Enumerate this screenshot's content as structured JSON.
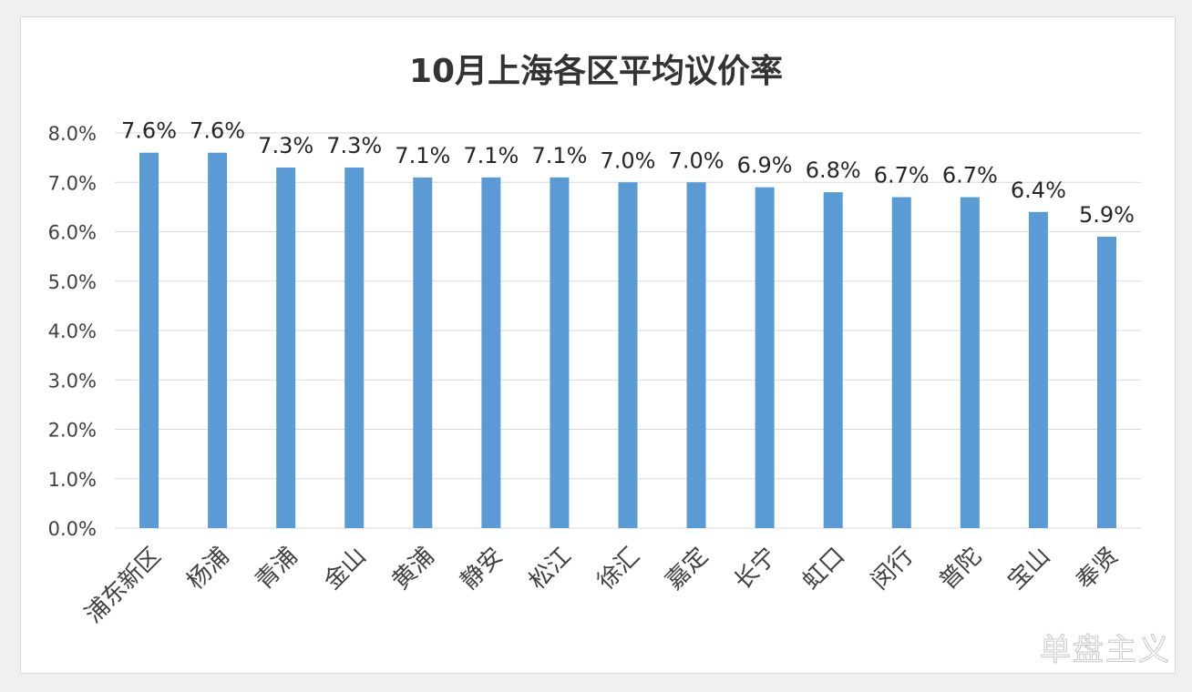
{
  "chart_data": {
    "type": "bar",
    "title": "10月上海各区平均议价率",
    "categories": [
      "浦东新区",
      "杨浦",
      "青浦",
      "金山",
      "黄浦",
      "静安",
      "松江",
      "徐汇",
      "嘉定",
      "长宁",
      "虹口",
      "闵行",
      "普陀",
      "宝山",
      "奉贤"
    ],
    "values": [
      7.6,
      7.6,
      7.3,
      7.3,
      7.1,
      7.1,
      7.1,
      7.0,
      7.0,
      6.9,
      6.8,
      6.7,
      6.7,
      6.4,
      5.9
    ],
    "value_labels": [
      "7.6%",
      "7.6%",
      "7.3%",
      "7.3%",
      "7.1%",
      "7.1%",
      "7.1%",
      "7.0%",
      "7.0%",
      "6.9%",
      "6.8%",
      "6.7%",
      "6.7%",
      "6.4%",
      "5.9%"
    ],
    "y_ticks": [
      0,
      1,
      2,
      3,
      4,
      5,
      6,
      7,
      8
    ],
    "y_tick_labels": [
      "0.0%",
      "1.0%",
      "2.0%",
      "3.0%",
      "4.0%",
      "5.0%",
      "6.0%",
      "7.0%",
      "8.0%"
    ],
    "ylim": [
      0,
      8
    ],
    "grid": true,
    "legend": "none",
    "bar_color": "#5b9bd5",
    "gridline_color": "#d9d9d9"
  },
  "watermark": "单盘主义"
}
